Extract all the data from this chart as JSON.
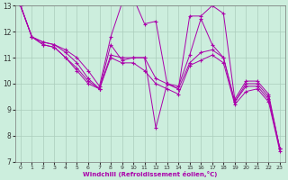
{
  "xlabel": "Windchill (Refroidissement éolien,°C)",
  "background_color": "#cceedd",
  "grid_color": "#aaccbb",
  "line_color": "#aa00aa",
  "xlim": [
    -0.5,
    23.5
  ],
  "ylim": [
    7,
    13
  ],
  "yticks": [
    7,
    8,
    9,
    10,
    11,
    12,
    13
  ],
  "xticks": [
    0,
    1,
    2,
    3,
    4,
    5,
    6,
    7,
    8,
    9,
    10,
    11,
    12,
    13,
    14,
    15,
    16,
    17,
    18,
    19,
    20,
    21,
    22,
    23
  ],
  "series": [
    [
      13.0,
      11.8,
      11.6,
      11.5,
      11.3,
      11.0,
      10.5,
      9.9,
      11.8,
      13.1,
      13.3,
      12.3,
      12.4,
      10.0,
      9.8,
      12.6,
      12.6,
      13.0,
      12.7,
      9.4,
      10.1,
      10.1,
      9.6,
      7.5
    ],
    [
      13.0,
      11.8,
      11.6,
      11.5,
      11.2,
      10.8,
      10.2,
      9.8,
      11.5,
      10.9,
      11.0,
      11.0,
      8.3,
      10.0,
      9.9,
      11.1,
      12.5,
      11.5,
      11.0,
      9.3,
      10.0,
      10.0,
      9.5,
      7.5
    ],
    [
      13.0,
      11.8,
      11.5,
      11.4,
      11.0,
      10.6,
      10.1,
      9.8,
      11.1,
      11.0,
      11.0,
      11.0,
      10.2,
      10.0,
      9.8,
      10.8,
      11.2,
      11.3,
      11.0,
      9.3,
      9.9,
      9.9,
      9.4,
      7.5
    ],
    [
      13.0,
      11.8,
      11.5,
      11.4,
      11.0,
      10.5,
      10.0,
      9.8,
      11.0,
      10.8,
      10.8,
      10.5,
      10.0,
      9.8,
      9.6,
      10.7,
      10.9,
      11.1,
      10.8,
      9.2,
      9.7,
      9.8,
      9.3,
      7.4
    ]
  ]
}
